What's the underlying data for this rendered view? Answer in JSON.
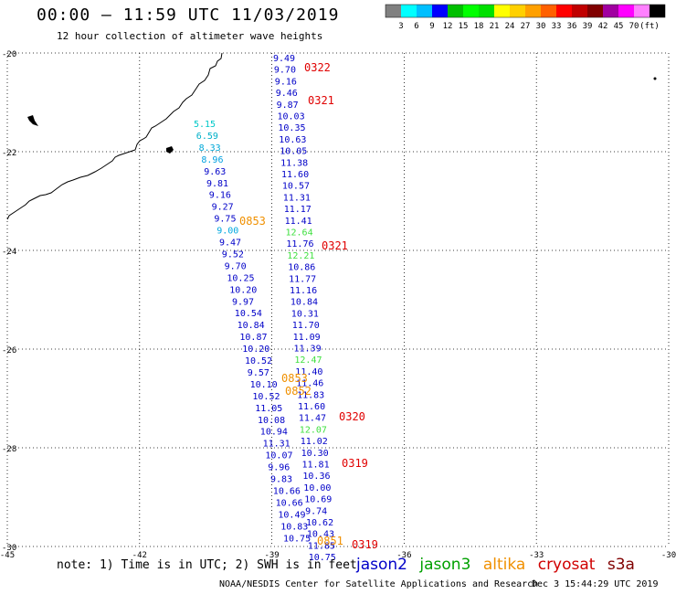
{
  "header": {
    "title": "00:00 — 11:59 UTC 11/03/2019",
    "subtitle": "12 hour collection of altimeter wave heights"
  },
  "colorbar": {
    "colors": [
      "#808080",
      "#00ffff",
      "#00bfff",
      "#0000ff",
      "#00bf00",
      "#00ff00",
      "#00e000",
      "#ffff00",
      "#ffd000",
      "#ffa000",
      "#ff6000",
      "#ff0000",
      "#c00000",
      "#800000",
      "#a000a0",
      "#ff00ff",
      "#ff80ff",
      "#000000"
    ],
    "labels": [
      "3",
      "6",
      "9",
      "12",
      "15",
      "18",
      "21",
      "24",
      "27",
      "30",
      "33",
      "36",
      "39",
      "42",
      "45",
      "70",
      "(ft)"
    ]
  },
  "axes": {
    "y_ticks": [
      "-20",
      "-22",
      "-24",
      "-26",
      "-28",
      "-30"
    ],
    "x_ticks": [
      "-45",
      "-42",
      "-39",
      "-36",
      "-33",
      "-30"
    ]
  },
  "left_track": {
    "labels": [
      "5.15",
      "6.59",
      "8.33",
      "8.96",
      "9.63",
      "9.81",
      "9.16",
      "9.27",
      "9.75",
      "9.00",
      "9.47",
      "9.52",
      "9.70",
      "10.25",
      "10.20",
      "9.97",
      "10.54",
      "10.84",
      "10.87",
      "10.20",
      "10.52",
      "9.57",
      "10.10",
      "10.52",
      "11.05",
      "10.08",
      "10.94",
      "11.31",
      "10.07",
      "9.96",
      "9.83",
      "10.66",
      "10.66",
      "10.49",
      "10.83",
      "10.75"
    ],
    "colors": [
      "#00c8c8",
      "#00b0c8",
      "#00a8d8",
      "#00a0e0",
      "#0000c8",
      "#0000c8",
      "#0000c8",
      "#0000c8",
      "#0000c8",
      "#00a8e0",
      "#0000c8",
      "#0000c8",
      "#0000c8",
      "#0000c8",
      "#0000c8",
      "#0000c8",
      "#0000c8",
      "#0000c8",
      "#0000c8",
      "#0000c8",
      "#0000c8",
      "#0000c8",
      "#0000c8",
      "#0000c8",
      "#0000c8",
      "#0000c8",
      "#0000c8",
      "#0000c8",
      "#0000c8",
      "#0000c8",
      "#0000c8",
      "#0000c8",
      "#0000c8",
      "#0000c8",
      "#0000c8",
      "#0000c8"
    ]
  },
  "right_track": {
    "labels": [
      "9.49",
      "9.70",
      "9.16",
      "9.46",
      "9.87",
      "10.03",
      "10.35",
      "10.63",
      "10.05",
      "11.38",
      "11.60",
      "10.57",
      "11.31",
      "11.17",
      "11.41",
      "12.64",
      "11.76",
      "12.21",
      "10.86",
      "11.77",
      "11.16",
      "10.84",
      "10.31",
      "11.70",
      "11.09",
      "11.39",
      "12.47",
      "11.40",
      "11.46",
      "11.83",
      "11.60",
      "11.47",
      "12.07",
      "11.02",
      "10.30",
      "11.81",
      "10.36",
      "10.00",
      "10.69",
      "9.74",
      "10.62",
      "10.43",
      "11.85",
      "10.75"
    ],
    "colors": [
      "#0000c8",
      "#0000c8",
      "#0000c8",
      "#0000c8",
      "#0000c8",
      "#0000c8",
      "#0000c8",
      "#0000c8",
      "#0000c8",
      "#0000c8",
      "#0000c8",
      "#0000c8",
      "#0000c8",
      "#0000c8",
      "#0000c8",
      "#40e040",
      "#0000c8",
      "#40e040",
      "#0000c8",
      "#0000c8",
      "#0000c8",
      "#0000c8",
      "#0000c8",
      "#0000c8",
      "#0000c8",
      "#0000c8",
      "#40e040",
      "#0000c8",
      "#0000c8",
      "#0000c8",
      "#0000c8",
      "#0000c8",
      "#40e040",
      "#0000c8",
      "#0000c8",
      "#0000c8",
      "#0000c8",
      "#0000c8",
      "#0000c8",
      "#0000c8",
      "#0000c8",
      "#0000c8",
      "#0000c8",
      "#0000c8"
    ]
  },
  "time_labels": [
    {
      "text": "0322",
      "color": "#e00000"
    },
    {
      "text": "0321",
      "color": "#e00000"
    },
    {
      "text": "0853",
      "color": "#f09000"
    },
    {
      "text": "0321",
      "color": "#e00000"
    },
    {
      "text": "0853",
      "color": "#f09000"
    },
    {
      "text": "0852",
      "color": "#f09000"
    },
    {
      "text": "0320",
      "color": "#e00000"
    },
    {
      "text": "0319",
      "color": "#e00000"
    },
    {
      "text": "0851",
      "color": "#f09000"
    },
    {
      "text": "0319",
      "color": "#e00000"
    }
  ],
  "footer": {
    "note": "note: 1) Time is in UTC; 2) SWH is in feet",
    "credit": "NOAA/NESDIS Center for Satellite Applications and Research",
    "date": "Dec  3 15:44:29 UTC 2019"
  },
  "satellites": [
    {
      "name": "jason2",
      "color": "#0000c8"
    },
    {
      "name": "jason3",
      "color": "#00a000"
    },
    {
      "name": "altika",
      "color": "#f09000"
    },
    {
      "name": "cryosat",
      "color": "#d00000"
    },
    {
      "name": "s3a",
      "color": "#800000"
    }
  ]
}
